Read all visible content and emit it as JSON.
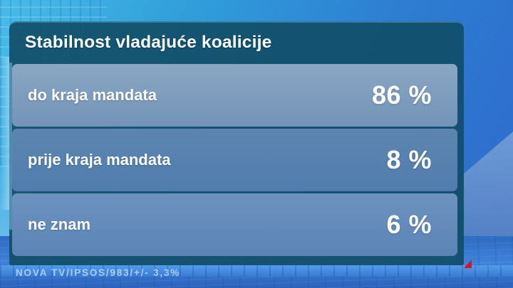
{
  "header": {
    "title": "Stabilnost vladajuće koalicije"
  },
  "chart_data": {
    "type": "table",
    "title": "Stabilnost vladajuće koalicije",
    "categories": [
      "do kraja mandata",
      "prije kraja mandata",
      "ne znam"
    ],
    "values": [
      86,
      8,
      6
    ],
    "unit": "%",
    "rows": [
      {
        "label": "do kraja mandata",
        "value": "86 %"
      },
      {
        "label": "prije kraja mandata",
        "value": "8 %"
      },
      {
        "label": "ne znam",
        "value": "6 %"
      }
    ],
    "source": "NOVA TV/IPSOS/983/+/- 3,3%"
  },
  "colors": {
    "panel_teal": "#1f5e76",
    "row_light": "#7b9cbd",
    "accent_red": "#e30f1e",
    "value_text": "#ffffff"
  }
}
